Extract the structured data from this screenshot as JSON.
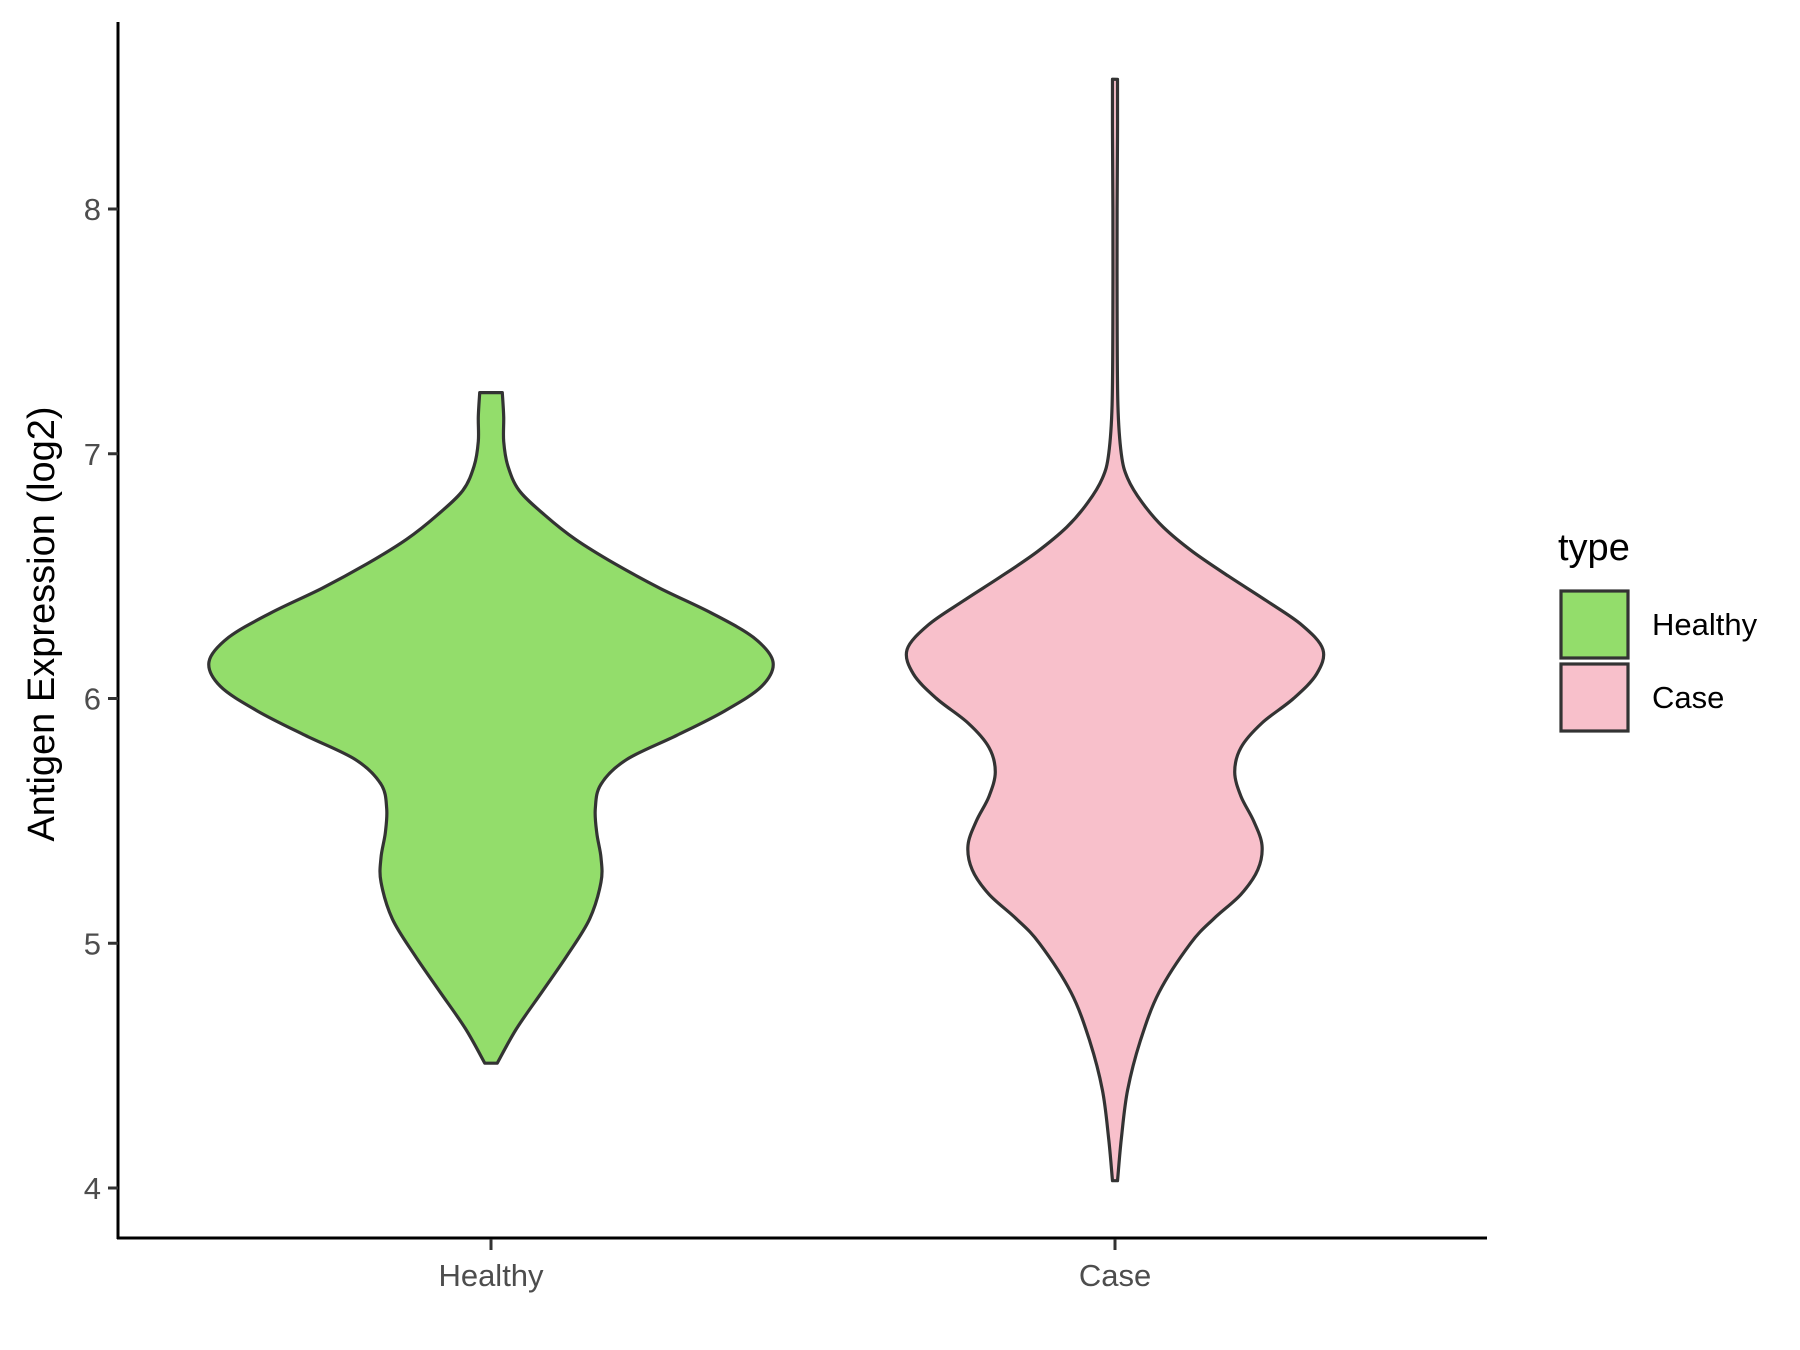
{
  "chart_data": {
    "type": "violin",
    "title": "",
    "xlabel": "",
    "ylabel": "Antigen Expression (log2)",
    "ylim": [
      3.8,
      8.75
    ],
    "yticks": [
      4,
      5,
      6,
      7,
      8
    ],
    "categories": [
      "Healthy",
      "Case"
    ],
    "grid": false,
    "legend": {
      "title": "type",
      "position": "right",
      "entries": [
        {
          "label": "Healthy",
          "color": "#93DD6B"
        },
        {
          "label": "Case",
          "color": "#F8C0CB"
        }
      ]
    },
    "series": [
      {
        "name": "Healthy",
        "color": "#93DD6B",
        "ymin": 4.51,
        "ymax": 7.25,
        "density_profile": [
          [
            4.51,
            0.022
          ],
          [
            4.65,
            0.09
          ],
          [
            4.8,
            0.18
          ],
          [
            4.95,
            0.27
          ],
          [
            5.1,
            0.35
          ],
          [
            5.25,
            0.39
          ],
          [
            5.35,
            0.39
          ],
          [
            5.45,
            0.375
          ],
          [
            5.55,
            0.37
          ],
          [
            5.65,
            0.39
          ],
          [
            5.75,
            0.48
          ],
          [
            5.85,
            0.66
          ],
          [
            5.95,
            0.83
          ],
          [
            6.05,
            0.96
          ],
          [
            6.15,
            1.0
          ],
          [
            6.25,
            0.93
          ],
          [
            6.35,
            0.78
          ],
          [
            6.45,
            0.6
          ],
          [
            6.55,
            0.44
          ],
          [
            6.65,
            0.3
          ],
          [
            6.75,
            0.19
          ],
          [
            6.85,
            0.1
          ],
          [
            6.95,
            0.06
          ],
          [
            7.05,
            0.045
          ],
          [
            7.15,
            0.045
          ],
          [
            7.25,
            0.04
          ]
        ]
      },
      {
        "name": "Case",
        "color": "#F8C0CB",
        "ymin": 4.03,
        "ymax": 8.53,
        "density_profile": [
          [
            4.03,
            0.012
          ],
          [
            4.2,
            0.03
          ],
          [
            4.4,
            0.06
          ],
          [
            4.6,
            0.12
          ],
          [
            4.8,
            0.21
          ],
          [
            5.0,
            0.36
          ],
          [
            5.1,
            0.47
          ],
          [
            5.2,
            0.6
          ],
          [
            5.3,
            0.68
          ],
          [
            5.4,
            0.7
          ],
          [
            5.5,
            0.66
          ],
          [
            5.6,
            0.6
          ],
          [
            5.7,
            0.57
          ],
          [
            5.8,
            0.6
          ],
          [
            5.9,
            0.7
          ],
          [
            6.0,
            0.85
          ],
          [
            6.1,
            0.96
          ],
          [
            6.2,
            0.99
          ],
          [
            6.3,
            0.89
          ],
          [
            6.4,
            0.72
          ],
          [
            6.5,
            0.54
          ],
          [
            6.6,
            0.37
          ],
          [
            6.7,
            0.23
          ],
          [
            6.8,
            0.13
          ],
          [
            6.9,
            0.06
          ],
          [
            7.0,
            0.03
          ],
          [
            7.2,
            0.014
          ],
          [
            7.6,
            0.01
          ],
          [
            8.0,
            0.01
          ],
          [
            8.3,
            0.012
          ],
          [
            8.53,
            0.012
          ]
        ]
      }
    ]
  }
}
